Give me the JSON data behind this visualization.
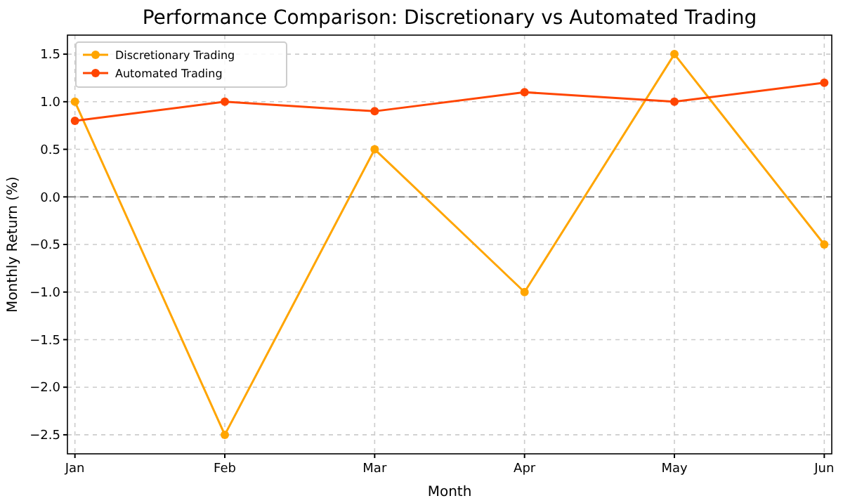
{
  "chart_data": {
    "type": "line",
    "title": "Performance Comparison: Discretionary vs Automated Trading",
    "xlabel": "Month",
    "ylabel": "Monthly Return (%)",
    "categories": [
      "Jan",
      "Feb",
      "Mar",
      "Apr",
      "May",
      "Jun"
    ],
    "series": [
      {
        "name": "Discretionary Trading",
        "color": "#ffa500",
        "values": [
          1.0,
          -2.5,
          0.5,
          -1.0,
          1.5,
          -0.5
        ]
      },
      {
        "name": "Automated Trading",
        "color": "#ff4500",
        "values": [
          0.8,
          1.0,
          0.9,
          1.1,
          1.0,
          1.2
        ]
      }
    ],
    "ylim": [
      -2.7,
      1.7
    ],
    "yticks": [
      {
        "value": -2.5,
        "label": "−2.5"
      },
      {
        "value": -2,
        "label": "−2.0"
      },
      {
        "value": -1.5,
        "label": "−1.5"
      },
      {
        "value": -1,
        "label": "−1.0"
      },
      {
        "value": -0.5,
        "label": "−0.5"
      },
      {
        "value": 0,
        "label": "0.0"
      },
      {
        "value": 0.5,
        "label": "0.5"
      },
      {
        "value": 1,
        "label": "1.0"
      },
      {
        "value": 1.5,
        "label": "1.5"
      }
    ],
    "ref_lines": [
      {
        "axis": "y",
        "value": 0,
        "color": "#808080",
        "line_style": "dashed"
      }
    ],
    "grid": true,
    "legend": "top left",
    "marker": "circle",
    "line_style": "solid"
  }
}
